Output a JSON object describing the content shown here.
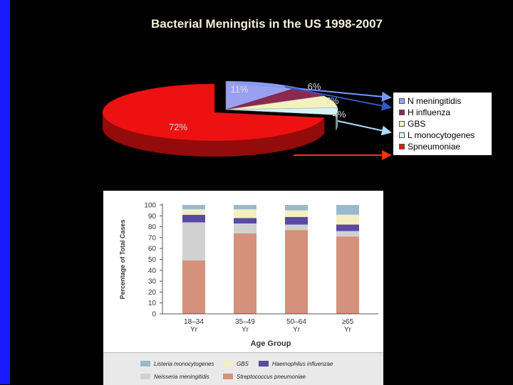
{
  "title": "Bacterial Meningitis in the US 1998-2007",
  "colors": {
    "background": "#000000",
    "left_bar": "#1a1aff",
    "title": "#f2f0d8",
    "pie_label": "#dddddd"
  },
  "chart_data": [
    {
      "type": "pie",
      "title": "Bacterial Meningitis in the US 1998-2007",
      "style": "3d-exploded",
      "slices": [
        {
          "name": "N meningitidis",
          "label": "11%",
          "value": 11,
          "color": "#9aa0f0"
        },
        {
          "name": "H influenza",
          "label": "6%",
          "value": 6,
          "color": "#8a2a50"
        },
        {
          "name": "GBS",
          "label": "7%",
          "value": 7,
          "color": "#f4f0c0"
        },
        {
          "name": "L monocytogenes",
          "label": "4%",
          "value": 4,
          "color": "#d8f4f6"
        },
        {
          "name": "Spneumoniae",
          "label": "72%",
          "value": 72,
          "color": "#ee1111"
        }
      ],
      "legend": [
        {
          "name": "N meningitidis",
          "color": "#9aa0f0"
        },
        {
          "name": "H influenza",
          "color": "#8a2a50"
        },
        {
          "name": "GBS",
          "color": "#f4f0c0"
        },
        {
          "name": "L monocytogenes",
          "color": "#d8f4f6"
        },
        {
          "name": "Spneumoniae",
          "color": "#ee1111"
        }
      ],
      "legend_position": "right",
      "arrow_colors": [
        "#7799ff",
        "#3355cc",
        "#aadfff",
        "#ee3311"
      ]
    },
    {
      "type": "bar",
      "stacked": true,
      "xlabel": "Age Group",
      "ylabel": "Percentage of Total Cases",
      "ylim": [
        0,
        100
      ],
      "yticks": [
        "0",
        "10",
        "20",
        "30",
        "40",
        "50",
        "60",
        "70",
        "80",
        "90",
        "100"
      ],
      "categories": [
        {
          "top": "18–34",
          "bottom": "Yr"
        },
        {
          "top": "35–49",
          "bottom": "Yr"
        },
        {
          "top": "50–64",
          "bottom": "Yr"
        },
        {
          "top": "≥65",
          "bottom": "Yr"
        }
      ],
      "series": [
        {
          "name": "Streptococcus pneumoniae",
          "color": "#d4917c",
          "values": [
            49,
            74,
            77,
            71
          ]
        },
        {
          "name": "Neisseria meningitidis",
          "color": "#d1d1d1",
          "values": [
            35,
            9,
            5,
            5
          ]
        },
        {
          "name": "Haemophilus influenzae",
          "color": "#5a4aa0",
          "values": [
            7,
            5,
            7,
            6
          ]
        },
        {
          "name": "GBS",
          "color": "#f3efc0",
          "values": [
            5,
            8,
            6,
            9
          ]
        },
        {
          "name": "Listeria monocytogenes",
          "color": "#9bb8cc",
          "values": [
            4,
            4,
            5,
            9
          ]
        }
      ],
      "legend_order": [
        "Listeria monocytogenes",
        "GBS",
        "Haemophilus influenzae",
        "Neisseria meningitidis",
        "Streptococcus pneumoniae"
      ],
      "legend_position": "bottom"
    }
  ]
}
